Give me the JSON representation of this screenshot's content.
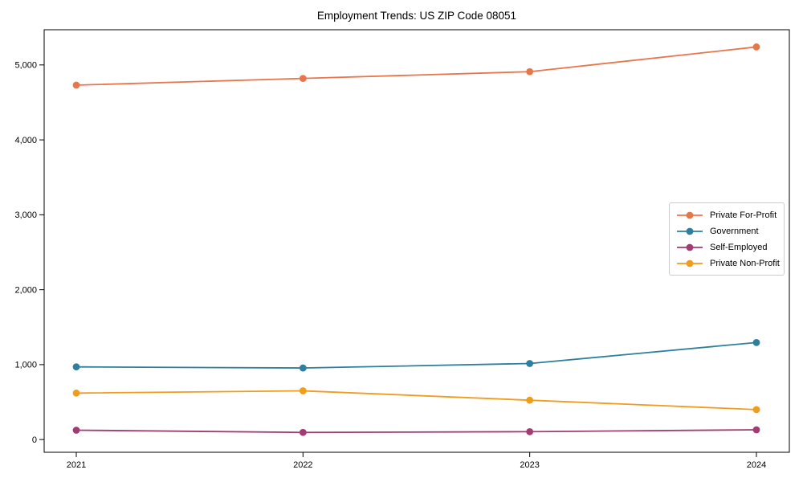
{
  "title": "Employment Trends: US ZIP Code 08051",
  "chart_data": {
    "type": "line",
    "title": "Employment Trends: US ZIP Code 08051",
    "x": [
      2021,
      2022,
      2023,
      2024
    ],
    "xtick_labels": [
      "2021",
      "2022",
      "2023",
      "2024"
    ],
    "yticks": [
      0,
      1000,
      2000,
      3000,
      4000,
      5000
    ],
    "ytick_labels": [
      "0",
      "1,000",
      "2,000",
      "3,000",
      "4,000",
      "5,000"
    ],
    "ylim": [
      -170,
      5470
    ],
    "xlabel": "",
    "ylabel": "",
    "grid": false,
    "legend_position": "center right",
    "marker": "circle",
    "series": [
      {
        "name": "Private For-Profit",
        "color": "#e8764b",
        "values": [
          4730,
          4820,
          4910,
          5240
        ]
      },
      {
        "name": "Government",
        "color": "#2e7f9e",
        "values": [
          970,
          955,
          1015,
          1295
        ]
      },
      {
        "name": "Self-Employed",
        "color": "#a23c73",
        "values": [
          125,
          95,
          105,
          130
        ]
      },
      {
        "name": "Private Non-Profit",
        "color": "#f09d1d",
        "values": [
          620,
          650,
          525,
          400
        ]
      }
    ]
  }
}
